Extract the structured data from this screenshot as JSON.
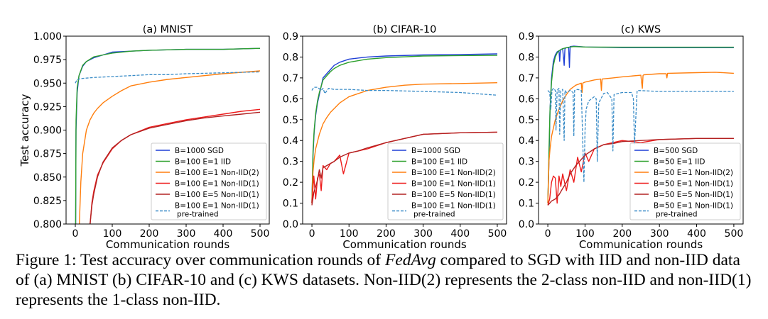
{
  "chart_data": [
    {
      "type": "line",
      "title": "(a) MNIST",
      "xlabel": "Communication rounds",
      "ylabel": "Test accuracy",
      "xlim": [
        -25,
        525
      ],
      "ylim": [
        0.8,
        1.0
      ],
      "xticks": [
        0,
        100,
        200,
        300,
        400,
        500
      ],
      "yticks": [
        0.8,
        0.825,
        0.85,
        0.875,
        0.9,
        0.925,
        0.95,
        0.975,
        1.0
      ],
      "ytick_labels": [
        "0.800",
        "0.825",
        "0.850",
        "0.875",
        "0.900",
        "0.925",
        "0.950",
        "0.975",
        "1.000"
      ],
      "grid": false,
      "legend_position": "lower-right",
      "series": [
        {
          "name": "B=1000 SGD",
          "color": "#1f3fd6",
          "style": "solid",
          "x": [
            0,
            2,
            5,
            10,
            20,
            30,
            50,
            75,
            100,
            150,
            200,
            300,
            400,
            500
          ],
          "y": [
            0.7,
            0.9,
            0.94,
            0.958,
            0.968,
            0.973,
            0.977,
            0.98,
            0.983,
            0.984,
            0.985,
            0.986,
            0.986,
            0.987
          ]
        },
        {
          "name": "B=100 E=1 IID",
          "color": "#2ca02c",
          "style": "solid",
          "x": [
            0,
            2,
            5,
            10,
            20,
            30,
            50,
            75,
            100,
            150,
            200,
            300,
            400,
            500
          ],
          "y": [
            0.7,
            0.91,
            0.945,
            0.958,
            0.969,
            0.973,
            0.978,
            0.98,
            0.982,
            0.984,
            0.985,
            0.986,
            0.986,
            0.987
          ]
        },
        {
          "name": "B=100 E=1 Non-IID(2)",
          "color": "#ff7f0e",
          "style": "solid",
          "x": [
            11,
            15,
            20,
            30,
            40,
            50,
            60,
            75,
            100,
            125,
            150,
            200,
            250,
            300,
            400,
            500
          ],
          "y": [
            0.8,
            0.845,
            0.875,
            0.9,
            0.911,
            0.918,
            0.923,
            0.929,
            0.936,
            0.942,
            0.947,
            0.951,
            0.954,
            0.956,
            0.96,
            0.963
          ]
        },
        {
          "name": "B=100 E=1 Non-IID(1)",
          "color": "#ee1c1c",
          "style": "solid",
          "x": [
            40,
            45,
            50,
            60,
            75,
            100,
            125,
            150,
            200,
            250,
            300,
            350,
            400,
            450,
            500
          ],
          "y": [
            0.8,
            0.823,
            0.835,
            0.852,
            0.865,
            0.88,
            0.889,
            0.895,
            0.903,
            0.907,
            0.911,
            0.914,
            0.917,
            0.92,
            0.922
          ]
        },
        {
          "name": "B=100 E=5 Non-IID(1)",
          "color": "#b22222",
          "style": "solid",
          "x": [
            40,
            45,
            50,
            60,
            75,
            100,
            125,
            150,
            200,
            250,
            300,
            350,
            400,
            450,
            500
          ],
          "y": [
            0.8,
            0.82,
            0.832,
            0.85,
            0.866,
            0.881,
            0.889,
            0.895,
            0.902,
            0.906,
            0.91,
            0.913,
            0.915,
            0.917,
            0.919
          ]
        },
        {
          "name": "B=100 E=1 Non-IID(1) pre-trained",
          "color": "#3a8cc7",
          "style": "dashed",
          "x": [
            0,
            5,
            20,
            50,
            100,
            150,
            200,
            250,
            300,
            400,
            500
          ],
          "y": [
            0.95,
            0.954,
            0.955,
            0.956,
            0.957,
            0.958,
            0.959,
            0.959,
            0.96,
            0.961,
            0.962
          ]
        }
      ]
    },
    {
      "type": "line",
      "title": "(b) CIFAR-10",
      "xlabel": "Communication rounds",
      "ylabel": "",
      "xlim": [
        -25,
        525
      ],
      "ylim": [
        0.0,
        0.9
      ],
      "xticks": [
        0,
        100,
        200,
        300,
        400,
        500
      ],
      "yticks": [
        0.0,
        0.1,
        0.2,
        0.3,
        0.4,
        0.5,
        0.6,
        0.7,
        0.8,
        0.9
      ],
      "ytick_labels": [
        "0.0",
        "0.1",
        "0.2",
        "0.3",
        "0.4",
        "0.5",
        "0.6",
        "0.7",
        "0.8",
        "0.9"
      ],
      "grid": false,
      "legend_position": "lower-right",
      "series": [
        {
          "name": "B=1000 SGD",
          "color": "#1f3fd6",
          "style": "solid",
          "x": [
            0,
            3,
            6,
            10,
            15,
            20,
            25,
            30,
            40,
            50,
            60,
            75,
            100,
            150,
            200,
            300,
            400,
            500
          ],
          "y": [
            0.1,
            0.33,
            0.44,
            0.52,
            0.58,
            0.62,
            0.66,
            0.7,
            0.72,
            0.74,
            0.76,
            0.775,
            0.79,
            0.8,
            0.805,
            0.81,
            0.812,
            0.815
          ]
        },
        {
          "name": "B=100 E=1 IID",
          "color": "#2ca02c",
          "style": "solid",
          "x": [
            0,
            3,
            6,
            10,
            15,
            20,
            25,
            30,
            40,
            50,
            60,
            75,
            100,
            150,
            200,
            300,
            400,
            500
          ],
          "y": [
            0.1,
            0.35,
            0.45,
            0.53,
            0.59,
            0.63,
            0.66,
            0.69,
            0.71,
            0.73,
            0.745,
            0.76,
            0.775,
            0.79,
            0.797,
            0.805,
            0.807,
            0.808
          ]
        },
        {
          "name": "B=100 E=1 Non-IID(2)",
          "color": "#ff7f0e",
          "style": "solid",
          "x": [
            0,
            3,
            6,
            10,
            20,
            30,
            40,
            50,
            75,
            100,
            150,
            200,
            250,
            300,
            400,
            500
          ],
          "y": [
            0.1,
            0.25,
            0.31,
            0.36,
            0.43,
            0.48,
            0.51,
            0.535,
            0.58,
            0.61,
            0.64,
            0.655,
            0.665,
            0.67,
            0.673,
            0.677
          ]
        },
        {
          "name": "B=100 E=1 Non-IID(1)",
          "color": "#ee1c1c",
          "style": "solid",
          "x": [
            0,
            5,
            10,
            15,
            20,
            25,
            30,
            40,
            50,
            60,
            75,
            85,
            100,
            125,
            150,
            200,
            250,
            300,
            400,
            500
          ],
          "y": [
            0.1,
            0.23,
            0.12,
            0.22,
            0.24,
            0.16,
            0.28,
            0.26,
            0.29,
            0.3,
            0.33,
            0.24,
            0.34,
            0.35,
            0.36,
            0.39,
            0.41,
            0.43,
            0.437,
            0.44
          ]
        },
        {
          "name": "B=100 E=5 Non-IID(1)",
          "color": "#b22222",
          "style": "solid",
          "x": [
            0,
            5,
            10,
            15,
            20,
            25,
            30,
            40,
            50,
            60,
            75,
            100,
            125,
            150,
            200,
            250,
            300,
            400,
            500
          ],
          "y": [
            0.09,
            0.15,
            0.18,
            0.21,
            0.26,
            0.22,
            0.27,
            0.28,
            0.29,
            0.3,
            0.32,
            0.34,
            0.35,
            0.365,
            0.39,
            0.41,
            0.43,
            0.437,
            0.44
          ]
        },
        {
          "name": "B=100 E=1 Non-IID(1) pre-trained",
          "color": "#3a8cc7",
          "style": "dashed",
          "x": [
            0,
            5,
            15,
            25,
            30,
            35,
            45,
            60,
            100,
            150,
            200,
            300,
            400,
            500
          ],
          "y": [
            0.64,
            0.655,
            0.655,
            0.64,
            0.65,
            0.625,
            0.65,
            0.645,
            0.645,
            0.64,
            0.64,
            0.635,
            0.63,
            0.617
          ]
        }
      ]
    },
    {
      "type": "line",
      "title": "(c) KWS",
      "xlabel": "Communication rounds",
      "ylabel": "",
      "xlim": [
        -25,
        525
      ],
      "ylim": [
        0.0,
        0.9
      ],
      "xticks": [
        0,
        100,
        200,
        300,
        400,
        500
      ],
      "yticks": [
        0.0,
        0.1,
        0.2,
        0.3,
        0.4,
        0.5,
        0.6,
        0.7,
        0.8,
        0.9
      ],
      "ytick_labels": [
        "0.0",
        "0.1",
        "0.2",
        "0.3",
        "0.4",
        "0.5",
        "0.6",
        "0.7",
        "0.8",
        "0.9"
      ],
      "grid": false,
      "legend_position": "lower-right",
      "series": [
        {
          "name": "B=500 SGD",
          "color": "#1f3fd6",
          "style": "solid",
          "x": [
            0,
            3,
            6,
            10,
            15,
            20,
            25,
            30,
            32,
            34,
            40,
            44,
            46,
            50,
            56,
            58,
            60,
            70,
            100,
            200,
            300,
            400,
            500
          ],
          "y": [
            0.1,
            0.3,
            0.55,
            0.7,
            0.78,
            0.81,
            0.825,
            0.83,
            0.78,
            0.835,
            0.84,
            0.76,
            0.84,
            0.845,
            0.845,
            0.75,
            0.85,
            0.852,
            0.848,
            0.845,
            0.845,
            0.845,
            0.845
          ]
        },
        {
          "name": "B=50 E=1 IID",
          "color": "#2ca02c",
          "style": "solid",
          "x": [
            0,
            3,
            6,
            10,
            15,
            20,
            25,
            30,
            40,
            50,
            60,
            70,
            100,
            200,
            300,
            400,
            500
          ],
          "y": [
            0.1,
            0.35,
            0.55,
            0.68,
            0.76,
            0.8,
            0.82,
            0.83,
            0.84,
            0.845,
            0.848,
            0.85,
            0.848,
            0.847,
            0.847,
            0.847,
            0.847
          ]
        },
        {
          "name": "B=50 E=1 Non-IID(2)",
          "color": "#ff7f0e",
          "style": "solid",
          "x": [
            0,
            3,
            6,
            10,
            20,
            30,
            40,
            50,
            60,
            75,
            90,
            92,
            94,
            100,
            125,
            142,
            144,
            146,
            175,
            200,
            250,
            254,
            256,
            258,
            300,
            318,
            320,
            322,
            400,
            450,
            500
          ],
          "y": [
            0.1,
            0.3,
            0.36,
            0.42,
            0.5,
            0.55,
            0.59,
            0.62,
            0.645,
            0.665,
            0.675,
            0.63,
            0.675,
            0.68,
            0.69,
            0.695,
            0.64,
            0.695,
            0.7,
            0.705,
            0.713,
            0.65,
            0.712,
            0.715,
            0.72,
            0.72,
            0.7,
            0.722,
            0.725,
            0.727,
            0.722
          ]
        },
        {
          "name": "B=50 E=1 Non-IID(1)",
          "color": "#ee1c1c",
          "style": "solid",
          "x": [
            0,
            5,
            10,
            15,
            20,
            25,
            30,
            35,
            40,
            50,
            60,
            70,
            80,
            90,
            100,
            110,
            125,
            150,
            175,
            200,
            250,
            300,
            400,
            500
          ],
          "y": [
            0.09,
            0.12,
            0.2,
            0.23,
            0.22,
            0.1,
            0.23,
            0.18,
            0.24,
            0.16,
            0.26,
            0.2,
            0.32,
            0.25,
            0.34,
            0.3,
            0.36,
            0.38,
            0.39,
            0.4,
            0.39,
            0.405,
            0.41,
            0.41
          ]
        },
        {
          "name": "B=50 E=5 Non-IID(1)",
          "color": "#b22222",
          "style": "solid",
          "x": [
            0,
            5,
            10,
            20,
            30,
            40,
            50,
            60,
            75,
            100,
            125,
            150,
            175,
            200,
            250,
            300,
            400,
            500
          ],
          "y": [
            0.09,
            0.1,
            0.11,
            0.12,
            0.14,
            0.17,
            0.2,
            0.24,
            0.28,
            0.33,
            0.36,
            0.38,
            0.385,
            0.395,
            0.4,
            0.405,
            0.41,
            0.41
          ]
        },
        {
          "name": "B=50 E=1 Non-IID(1) pre-trained",
          "color": "#3a8cc7",
          "style": "dashed",
          "x": [
            0,
            5,
            8,
            11,
            15,
            20,
            22,
            25,
            30,
            32,
            35,
            40,
            44,
            46,
            50,
            60,
            68,
            70,
            72,
            80,
            90,
            97,
            100,
            103,
            110,
            125,
            130,
            133,
            137,
            150,
            160,
            172,
            175,
            178,
            200,
            225,
            230,
            233,
            240,
            300,
            400,
            500
          ],
          "y": [
            0.64,
            0.63,
            0.55,
            0.64,
            0.65,
            0.64,
            0.45,
            0.64,
            0.65,
            0.43,
            0.64,
            0.645,
            0.4,
            0.64,
            0.63,
            0.64,
            0.63,
            0.42,
            0.64,
            0.645,
            0.64,
            0.2,
            0.45,
            0.55,
            0.59,
            0.61,
            0.6,
            0.3,
            0.58,
            0.625,
            0.63,
            0.6,
            0.35,
            0.62,
            0.63,
            0.63,
            0.6,
            0.38,
            0.64,
            0.635,
            0.635,
            0.635
          ]
        }
      ]
    }
  ],
  "caption": {
    "prefix": "Figure 1: Test accuracy over communication rounds of ",
    "math": "FedAvg",
    "suffix": " compared to SGD with IID and non-IID data of (a) MNIST (b) CIFAR-10 and (c) KWS datasets. Non-IID(2) represents the 2-class non-IID and non-IID(1) represents the 1-class non-IID."
  },
  "legend_second_line": "pre-trained"
}
